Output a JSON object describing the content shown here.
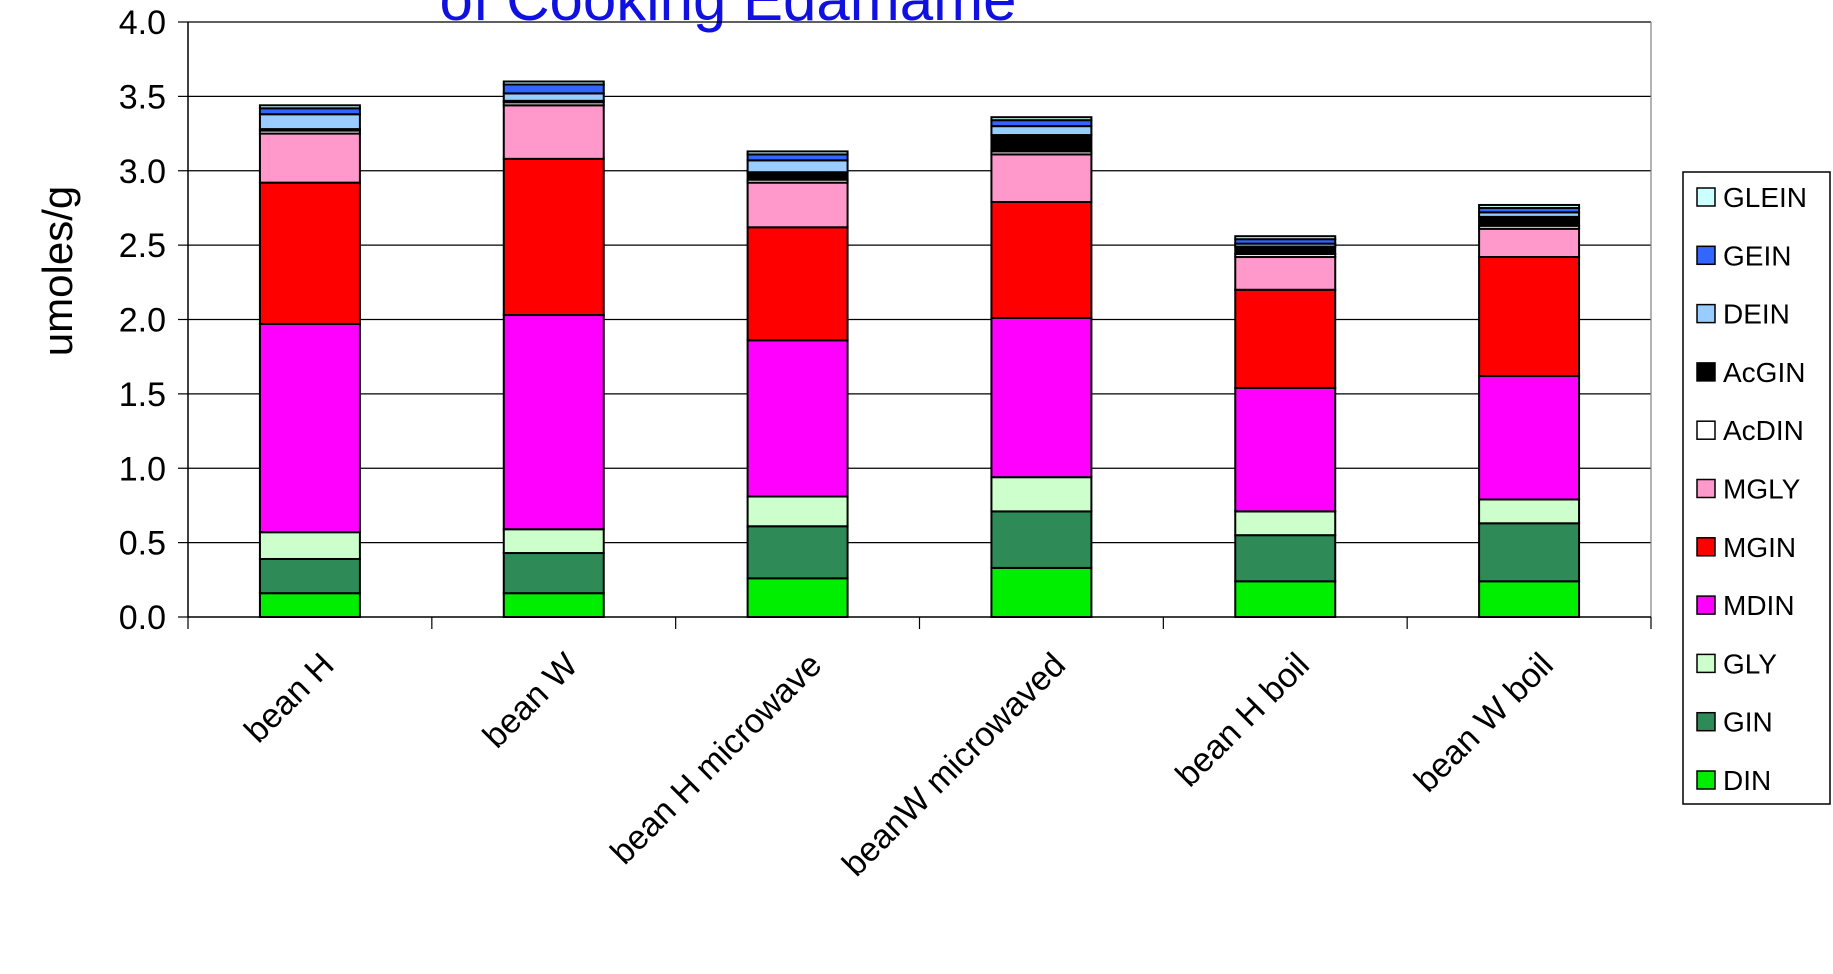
{
  "chart_data": {
    "type": "bar",
    "stacked": true,
    "title": "of Cooking Edamame",
    "ylabel": "umoles/g",
    "xlabel": "",
    "ylim": [
      0,
      4.0
    ],
    "yticks": [
      "0.0",
      "0.5",
      "1.0",
      "1.5",
      "2.0",
      "2.5",
      "3.0",
      "3.5",
      "4.0"
    ],
    "grid": "horizontal",
    "legend_position": "right",
    "categories": [
      "bean H",
      "bean W",
      "bean H microwave",
      "beanW microwaved",
      "bean H boil",
      "bean W boil"
    ],
    "series": [
      {
        "name": "DIN",
        "color": "#00ee00",
        "values": [
          0.16,
          0.16,
          0.26,
          0.33,
          0.24,
          0.24
        ]
      },
      {
        "name": "GIN",
        "color": "#2e8b57",
        "values": [
          0.23,
          0.27,
          0.35,
          0.38,
          0.31,
          0.39
        ]
      },
      {
        "name": "GLY",
        "color": "#ccffcc",
        "values": [
          0.18,
          0.16,
          0.2,
          0.23,
          0.16,
          0.16
        ]
      },
      {
        "name": "MDIN",
        "color": "#ff00ff",
        "values": [
          1.4,
          1.44,
          1.05,
          1.07,
          0.83,
          0.83
        ]
      },
      {
        "name": "MGIN",
        "color": "#ff0000",
        "values": [
          0.95,
          1.05,
          0.76,
          0.78,
          0.66,
          0.8
        ]
      },
      {
        "name": "MGLY",
        "color": "#ff99cc",
        "values": [
          0.33,
          0.36,
          0.3,
          0.32,
          0.22,
          0.19
        ]
      },
      {
        "name": "AcDIN",
        "color": "#ffffff",
        "values": [
          0.02,
          0.02,
          0.02,
          0.02,
          0.02,
          0.02
        ]
      },
      {
        "name": "AcGIN",
        "color": "#000000",
        "values": [
          0.01,
          0.01,
          0.05,
          0.11,
          0.05,
          0.06
        ]
      },
      {
        "name": "DEIN",
        "color": "#99ccff",
        "values": [
          0.1,
          0.05,
          0.08,
          0.06,
          0.02,
          0.03
        ]
      },
      {
        "name": "GEIN",
        "color": "#3366ff",
        "values": [
          0.04,
          0.06,
          0.04,
          0.04,
          0.03,
          0.03
        ]
      },
      {
        "name": "GLEIN",
        "color": "#ccffff",
        "values": [
          0.02,
          0.02,
          0.02,
          0.02,
          0.02,
          0.02
        ]
      }
    ]
  }
}
